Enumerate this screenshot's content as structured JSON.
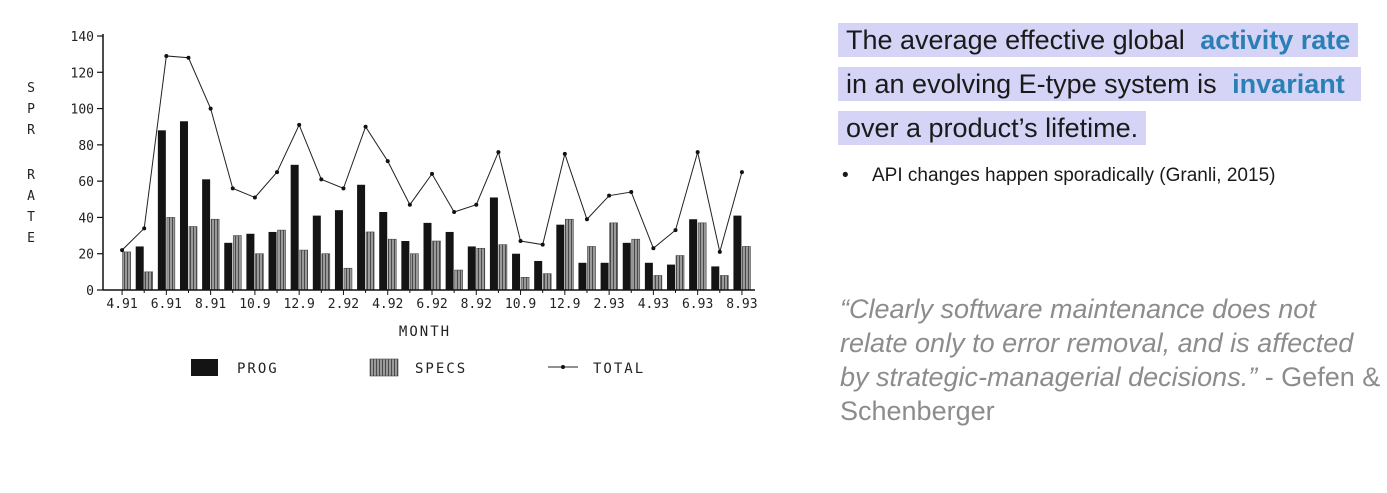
{
  "headline": {
    "part1": "The average effective global ",
    "em1": "activity rate",
    "part2": " in an evolving E-type system is ",
    "em2": "invariant",
    "part3": " over a product’s lifetime."
  },
  "bullets": [
    "API changes happen sporadically (Granli, 2015)"
  ],
  "quote": {
    "text": "“Clearly software maintenance does not relate only to error removal, and is affected by strategic-managerial decisions.”",
    "attribution": " - Gefen & Schenberger"
  },
  "colors": {
    "highlight": "#d6d4f6",
    "emphasis": "#2a7fb5",
    "quote_gray": "#8c8c8c"
  },
  "chart_data": {
    "type": "bar",
    "ylabel": "SPR RATE",
    "xlabel": "MONTH",
    "ylim": [
      0,
      140
    ],
    "yticks": [
      0,
      20,
      40,
      60,
      80,
      100,
      120,
      140
    ],
    "x_tick_labels": [
      "4.91",
      "6.91",
      "8.91",
      "10.9",
      "12.9",
      "2.92",
      "4.92",
      "6.92",
      "8.92",
      "10.9",
      "12.9",
      "2.93",
      "4.93",
      "6.93",
      "8.93"
    ],
    "months": [
      "4.91",
      "5.91",
      "6.91",
      "7.91",
      "8.91",
      "9.91",
      "10.91",
      "11.91",
      "12.91",
      "1.92",
      "2.92",
      "3.92",
      "4.92",
      "5.92",
      "6.92",
      "7.92",
      "8.92",
      "9.92",
      "10.92",
      "11.92",
      "12.92",
      "1.93",
      "2.93",
      "3.93",
      "4.93",
      "5.93",
      "6.93",
      "7.93",
      "8.93"
    ],
    "series": [
      {
        "name": "PROG",
        "type": "bar",
        "values": [
          0,
          24,
          88,
          93,
          61,
          26,
          31,
          32,
          69,
          41,
          44,
          58,
          43,
          27,
          37,
          32,
          24,
          51,
          20,
          16,
          36,
          15,
          15,
          26,
          15,
          14,
          39,
          13,
          41
        ]
      },
      {
        "name": "SPECS",
        "type": "bar",
        "values": [
          21,
          10,
          40,
          35,
          39,
          30,
          20,
          33,
          22,
          20,
          12,
          32,
          28,
          20,
          27,
          11,
          23,
          25,
          7,
          9,
          39,
          24,
          37,
          28,
          8,
          19,
          37,
          8,
          24
        ]
      },
      {
        "name": "TOTAL",
        "type": "line",
        "values": [
          22,
          34,
          129,
          128,
          100,
          56,
          51,
          65,
          91,
          61,
          56,
          90,
          71,
          47,
          64,
          43,
          47,
          76,
          27,
          25,
          75,
          39,
          52,
          54,
          23,
          33,
          76,
          21,
          65
        ]
      }
    ],
    "legend": {
      "placement": "bottom"
    },
    "grid": false
  }
}
